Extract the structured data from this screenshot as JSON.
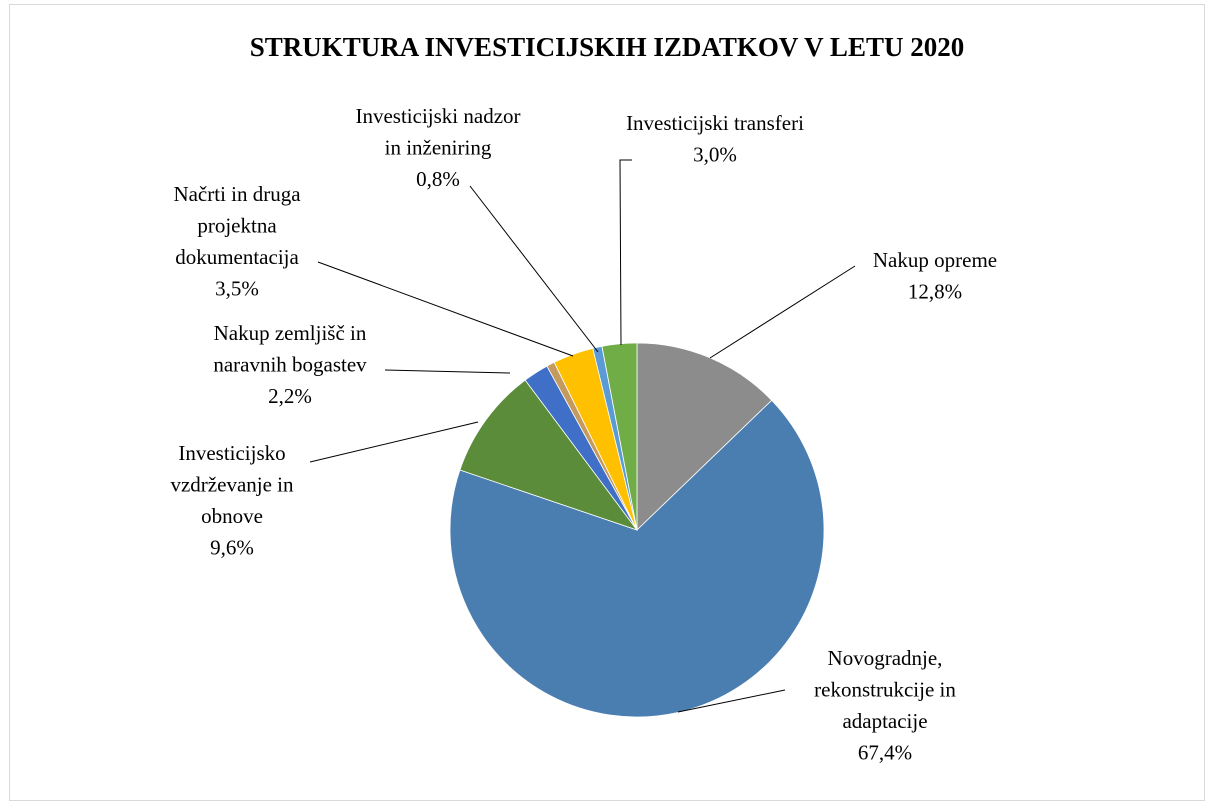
{
  "chart_data": {
    "type": "pie",
    "title": "STRUKTURA  INVESTICIJSKIH IZDATKOV V LETU 2020",
    "categories": [
      "Nakup opreme",
      "Novogradnje,\nrekonstrukcije in\nadaptacije",
      "Investicijsko\nvzdrževanje  in\nobnove",
      "Nakup zemljišč in\nnaravnih bogastev",
      null,
      "Načrti in druga\nprojektna\ndokumentacija",
      "Investicijski nadzor\nin inženiring",
      "Investicijski transferi"
    ],
    "values": [
      12.8,
      67.4,
      9.6,
      2.2,
      0.7,
      3.5,
      0.8,
      3.0
    ],
    "value_labels": [
      "12,8%",
      "67,4%",
      "9,6%",
      "2,2%",
      null,
      "3,5%",
      "0,8%",
      "3,0%"
    ],
    "colors": [
      "#8c8c8c",
      "#4a7eb0",
      "#5b8c3a",
      "#3f6fc6",
      "#c49a5e",
      "#ffc000",
      "#5b9bd5",
      "#70ad47"
    ]
  }
}
